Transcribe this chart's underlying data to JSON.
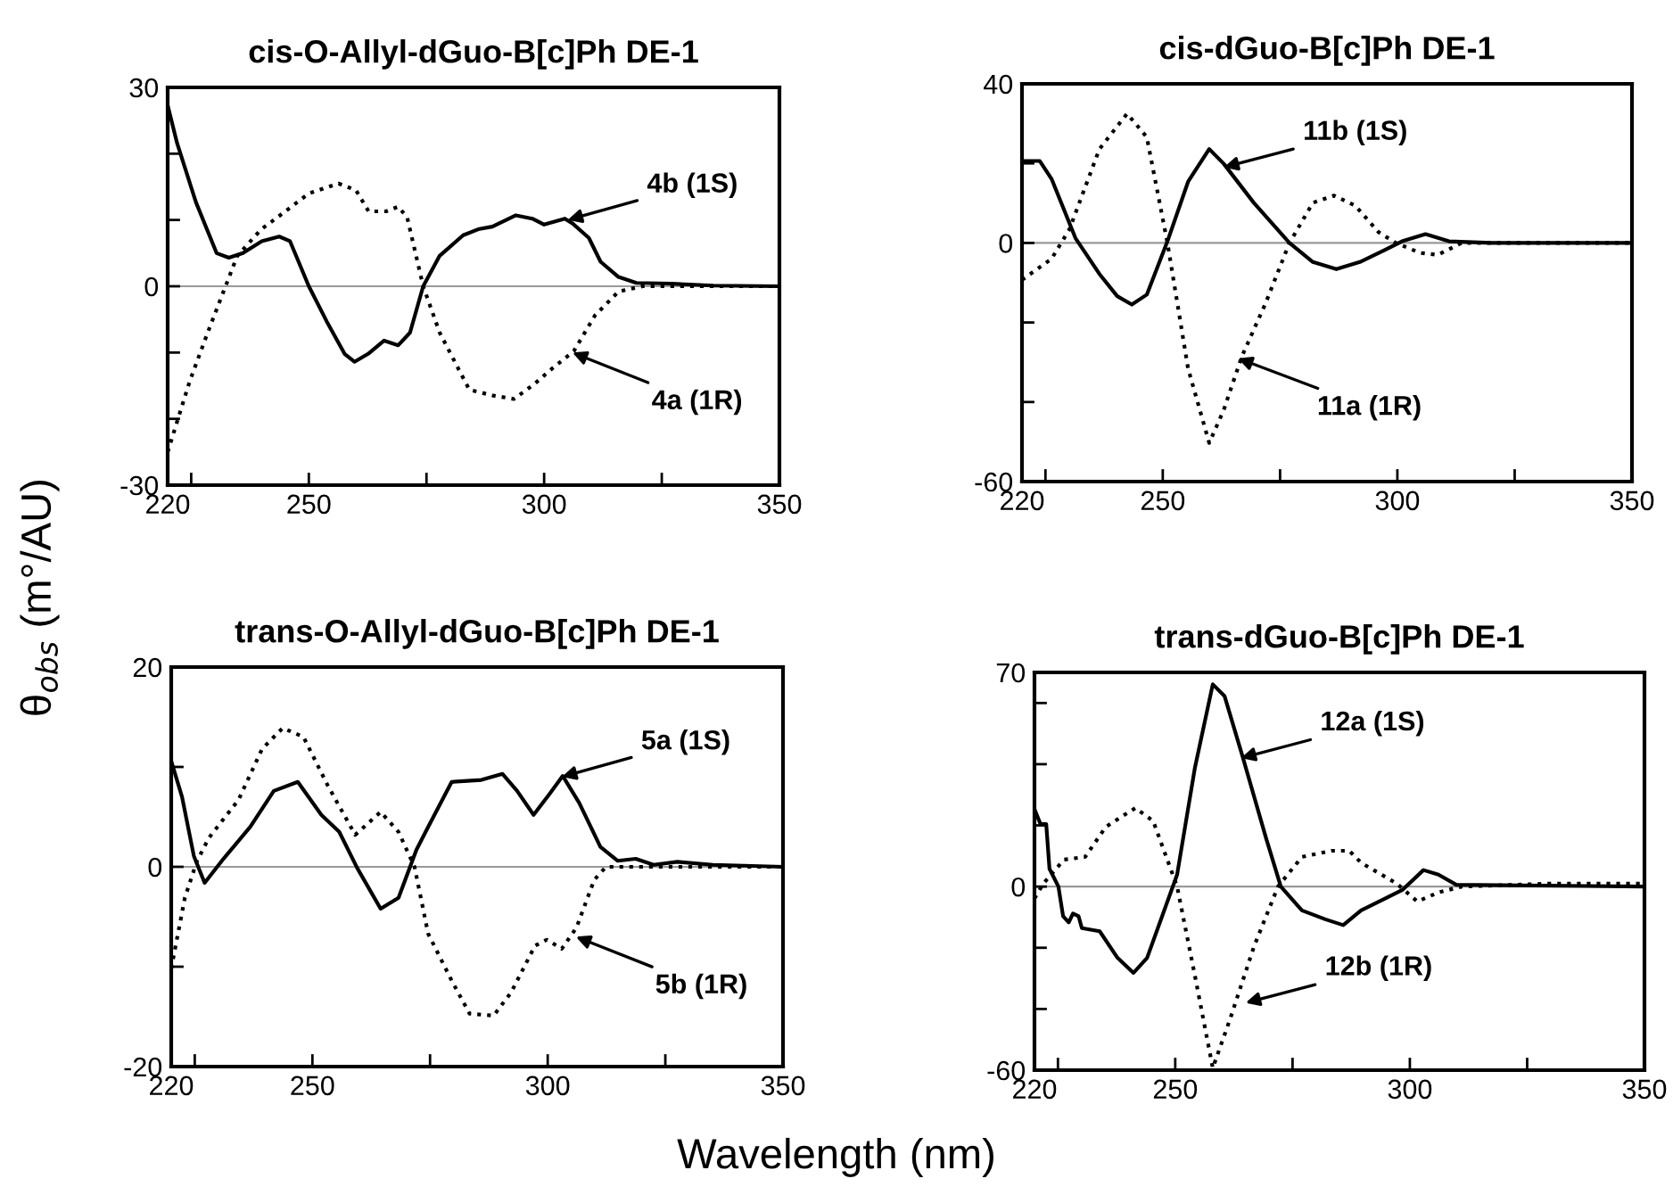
{
  "chart_data": [
    {
      "type": "line",
      "title": "cis-O-Allyl-dGuo-B[c]Ph DE-1",
      "xlabel": "Wavelength (nm)",
      "ylabel": "θ$_{obs}$ (m°/AU)",
      "xlim": [
        220,
        350
      ],
      "xticks": [
        220,
        {
          "value": 225,
          "label": null
        },
        250,
        {
          "value": 275,
          "label": null
        },
        300,
        {
          "value": 325,
          "label": null
        },
        350
      ],
      "ylim": [
        -30,
        30
      ],
      "yticks": [
        -30,
        {
          "value": -20,
          "label": null
        },
        {
          "value": -10,
          "label": null
        },
        0,
        {
          "value": 10,
          "label": null
        },
        {
          "value": 20,
          "label": null
        },
        30
      ],
      "grid": false,
      "legend": false,
      "ref_lines": [
        {
          "axis": "y",
          "value": 0,
          "color": "#999999"
        }
      ],
      "series": [
        {
          "color": "#000000",
          "line_style": "solid",
          "x": [
            220,
            222,
            226,
            230.4,
            233,
            236,
            240,
            243.7,
            246,
            250,
            253.8,
            257.6,
            259.7,
            262.6,
            266,
            269,
            271.5,
            274.3,
            277.8,
            282.8,
            286,
            289,
            294,
            297.5,
            300,
            304.4,
            306,
            309.5,
            312,
            315.8,
            319.6,
            327,
            336,
            350
          ],
          "values": [
            27.3,
            21.6,
            12.7,
            5,
            4.3,
            5,
            6.8,
            7.5,
            6.8,
            0,
            -5.3,
            -10.2,
            -11.4,
            -10.2,
            -8.2,
            -8.9,
            -7,
            0,
            4.6,
            7.7,
            8.6,
            9,
            10.7,
            10.2,
            9.3,
            10.2,
            9.5,
            7.3,
            3.7,
            1.4,
            0.5,
            0.4,
            0.1,
            0
          ]
        },
        {
          "color": "#000000",
          "line_style": "dotted",
          "x": [
            220,
            224.7,
            228.5,
            232.3,
            234.8,
            239.9,
            245,
            250,
            256.3,
            260,
            262.7,
            266.4,
            269,
            270.9,
            274.3,
            277.8,
            284.1,
            289.2,
            293.6,
            298,
            301.9,
            306.3,
            310.8,
            315.8,
            320.9,
            350
          ],
          "values": [
            -25,
            -14.3,
            -7,
            0,
            4.6,
            8.6,
            11.3,
            14,
            15.5,
            14.5,
            11.3,
            11.3,
            12,
            10.4,
            0,
            -7,
            -15.6,
            -16.5,
            -17,
            -14.7,
            -12.3,
            -9.8,
            -4.4,
            -0.8,
            0,
            0
          ]
        }
      ],
      "annotations": [
        {
          "text": "4b (1S)",
          "x": 305,
          "y": 10
        },
        {
          "text": "4a (1R)",
          "x": 306,
          "y": -10
        }
      ]
    },
    {
      "type": "line",
      "title": "cis-dGuo-B[c]Ph DE-1",
      "xlim": [
        220,
        350
      ],
      "xticks": [
        220,
        {
          "value": 225,
          "label": null
        },
        250,
        {
          "value": 275,
          "label": null
        },
        300,
        {
          "value": 325,
          "label": null
        },
        350
      ],
      "ylim": [
        -60,
        40
      ],
      "yticks": [
        -60,
        {
          "value": -40,
          "label": null
        },
        {
          "value": -20,
          "label": null
        },
        0,
        {
          "value": 20,
          "label": null
        },
        40
      ],
      "grid": false,
      "legend": false,
      "ref_lines": [
        {
          "axis": "y",
          "value": 0,
          "color": "#999999"
        }
      ],
      "series": [
        {
          "color": "#000000",
          "line_style": "solid",
          "x": [
            220,
            223.8,
            226.3,
            231.4,
            236.5,
            240.3,
            243.4,
            246.6,
            251,
            255.4,
            259.9,
            263,
            269.4,
            277,
            282,
            287,
            292,
            297.3,
            301,
            306,
            311,
            320,
            350
          ],
          "values": [
            20.6,
            20.6,
            16.1,
            1.2,
            -7.8,
            -13.4,
            -15.5,
            -13,
            0.4,
            15.4,
            23.6,
            19.9,
            10.1,
            0,
            -4.8,
            -6.6,
            -4.8,
            -1.8,
            0.4,
            2.2,
            0.4,
            0,
            0
          ]
        },
        {
          "color": "#000000",
          "line_style": "dotted",
          "x": [
            220,
            226.3,
            230.1,
            236.5,
            242.4,
            246.6,
            251,
            255.4,
            259.9,
            263,
            266.8,
            271.9,
            277,
            282,
            286.5,
            291,
            296,
            299.7,
            304.8,
            308.6,
            313.7,
            350
          ],
          "values": [
            -9.3,
            -4,
            3.4,
            23.6,
            32.5,
            26.6,
            0,
            -31.6,
            -50.3,
            -42,
            -28.7,
            -15.2,
            0,
            10.1,
            11.9,
            9.4,
            2.7,
            0,
            -2.5,
            -3,
            0,
            0
          ]
        }
      ],
      "annotations": [
        {
          "text": "11b (1S)",
          "x": 263,
          "y": 19
        },
        {
          "text": "11a (1R)",
          "x": 266,
          "y": -29
        }
      ]
    },
    {
      "type": "line",
      "title": "trans-O-Allyl-dGuo-B[c]Ph DE-1",
      "xlim": [
        220,
        350
      ],
      "xticks": [
        220,
        {
          "value": 225,
          "label": null
        },
        250,
        {
          "value": 275,
          "label": null
        },
        300,
        {
          "value": 325,
          "label": null
        },
        350
      ],
      "ylim": [
        -20,
        20
      ],
      "yticks": [
        -20,
        {
          "value": -10,
          "label": null
        },
        0,
        {
          "value": 10,
          "label": null
        },
        20
      ],
      "grid": false,
      "legend": false,
      "ref_lines": [
        {
          "axis": "y",
          "value": 0,
          "color": "#999999"
        }
      ],
      "series": [
        {
          "color": "#000000",
          "line_style": "solid",
          "x": [
            220,
            222.3,
            224.8,
            227.1,
            231.1,
            236.8,
            241.8,
            246.9,
            251.9,
            255.7,
            259.5,
            264.5,
            268.3,
            272.1,
            274.6,
            279.6,
            285.9,
            290.4,
            293.5,
            297,
            300.4,
            303.2,
            306.7,
            311.2,
            314.9,
            318.7,
            322.5,
            327.6,
            335.1,
            350
          ],
          "values": [
            10.6,
            7,
            1.1,
            -1.6,
            0.8,
            4,
            7.6,
            8.5,
            5.2,
            3.5,
            -0.1,
            -4.2,
            -3.1,
            1.7,
            4,
            8.5,
            8.7,
            9.3,
            7.6,
            5.2,
            7.3,
            9.1,
            6.4,
            2,
            0.6,
            0.8,
            0.2,
            0.5,
            0.2,
            0
          ]
        },
        {
          "color": "#000000",
          "line_style": "dotted",
          "x": [
            220,
            222.9,
            225.4,
            228,
            234.3,
            239.3,
            243.7,
            248.1,
            253.2,
            259.1,
            264.5,
            268.3,
            271.7,
            274.6,
            279.6,
            283.4,
            288.5,
            292.2,
            297.3,
            299.8,
            303,
            306.1,
            309.9,
            312.4,
            350
          ],
          "values": [
            -10.2,
            -3.1,
            0.5,
            2.9,
            6.7,
            11.8,
            13.9,
            13,
            8.2,
            3.2,
            5.5,
            3.5,
            0,
            -6.7,
            -11.4,
            -14.7,
            -14.9,
            -12.6,
            -7.9,
            -7.3,
            -8.2,
            -6.1,
            -1.3,
            0,
            0
          ]
        }
      ],
      "annotations": [
        {
          "text": "5a (1S)",
          "x": 303,
          "y": 9
        },
        {
          "text": "5b (1R)",
          "x": 306,
          "y": -7
        }
      ]
    },
    {
      "type": "line",
      "title": "trans-dGuo-B[c]Ph DE-1",
      "xlim": [
        220,
        350
      ],
      "xticks": [
        220,
        {
          "value": 225,
          "label": null
        },
        250,
        {
          "value": 275,
          "label": null
        },
        300,
        {
          "value": 325,
          "label": null
        },
        350
      ],
      "ylim": [
        -60,
        70
      ],
      "yticks": [
        -60,
        {
          "value": -40,
          "label": null
        },
        {
          "value": -20,
          "label": null
        },
        0,
        {
          "value": 20,
          "label": null
        },
        {
          "value": 40,
          "label": null
        },
        {
          "value": 60,
          "label": null
        },
        70
      ],
      "grid": false,
      "legend": false,
      "ref_lines": [
        {
          "axis": "y",
          "value": 0,
          "color": "#999999"
        }
      ],
      "series": [
        {
          "color": "#000000",
          "line_style": "solid",
          "x": [
            220,
            221.3,
            222.5,
            223.2,
            225.1,
            226.1,
            227.3,
            228.2,
            229.4,
            230.1,
            233.9,
            237.7,
            241.1,
            244,
            247.2,
            250.4,
            254.2,
            258,
            260.5,
            264.3,
            269.4,
            272.5,
            277,
            282,
            285.8,
            289.6,
            294.7,
            298.5,
            302.9,
            306.1,
            309.9,
            350
          ],
          "values": [
            25.3,
            20.4,
            20.4,
            5.8,
            0,
            -9.7,
            -11.7,
            -8.8,
            -9.7,
            -13.6,
            -14.6,
            -23.3,
            -28.2,
            -23.3,
            -9.7,
            3.9,
            38.9,
            66.1,
            62.3,
            42.8,
            15.6,
            0,
            -7.8,
            -10.7,
            -12.6,
            -7.8,
            -3.9,
            -1,
            5.4,
            3.9,
            0.6,
            0
          ]
        },
        {
          "color": "#000000",
          "line_style": "dotted",
          "x": [
            220,
            221.9,
            226.3,
            230.8,
            235.2,
            241.5,
            245.3,
            250.4,
            254.2,
            258,
            261.8,
            266.8,
            271.9,
            277,
            283.3,
            287.1,
            289.6,
            297.2,
            301.6,
            306.1,
            311.1,
            330,
            350
          ],
          "values": [
            -3.9,
            1,
            8.8,
            9.7,
            19.5,
            25.7,
            21.4,
            0,
            -29.2,
            -59.3,
            -42.8,
            -19.5,
            0,
            9.7,
            11.7,
            11.7,
            7.8,
            1,
            -4.9,
            -1.9,
            0,
            1,
            1
          ]
        }
      ],
      "annotations": [
        {
          "text": "12a (1S)",
          "x": 264,
          "y": 42
        },
        {
          "text": "12b (1R)",
          "x": 265,
          "y": -38
        }
      ]
    }
  ]
}
